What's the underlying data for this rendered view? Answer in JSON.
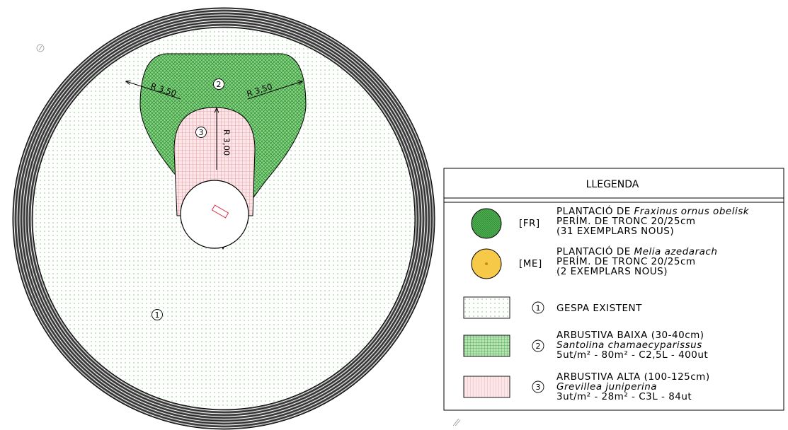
{
  "plan": {
    "zone_lawn_number": "1",
    "zone_low_shrub_number": "2",
    "zone_high_shrub_number": "3",
    "dim_left_radius": "R 3,50",
    "dim_right_radius": "R 3,50",
    "dim_inner_radius": "R 3,00"
  },
  "legend": {
    "title": "LLEGENDA",
    "items": [
      {
        "code": "[FR]",
        "line1_prefix": "PLANTACIÓ DE ",
        "line1_species": "Fraxinus ornus obelisk",
        "line2": "PERÍM. DE TRONC 20/25cm",
        "line3": "(31 EXEMPLARS NOUS)"
      },
      {
        "code": "[ME]",
        "line1_prefix": "PLANTACIÓ DE ",
        "line1_species": "Melia azedarach",
        "line2": "PERÍM. DE TRONC 20/25cm",
        "line3": "(2 EXEMPLARS NOUS)"
      },
      {
        "number": "1",
        "line1": "GESPA EXISTENT"
      },
      {
        "number": "2",
        "line1": "ARBUSTIVA BAIXA (30-40cm)",
        "line2": "Santolina chamaecyparissus",
        "line3": "5ut/m² - 80m² - C2,5L - 400ut"
      },
      {
        "number": "3",
        "line1": "ARBUSTIVA ALTA (100-125cm)",
        "line2": "Grevillea juniperina",
        "line3": "3ut/m² - 28m² - C3L - 84ut"
      }
    ]
  },
  "colors": {
    "lawn_dots": "#9fd39a",
    "low_shrub": "#3faa3f",
    "high_shrub": "#e8a0a8",
    "fraxinus_fill": "#4caf50",
    "melia_fill": "#f7c948",
    "line": "#000000"
  }
}
